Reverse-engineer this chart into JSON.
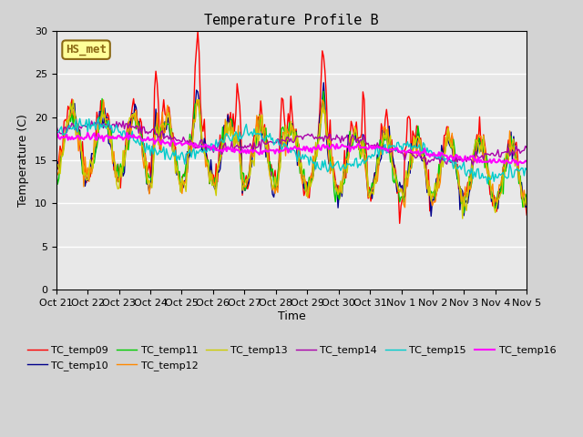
{
  "title": "Temperature Profile B",
  "xlabel": "Time",
  "ylabel": "Temperature (C)",
  "ylim": [
    0,
    30
  ],
  "background_color": "#d3d3d3",
  "plot_bg_color": "#e8e8e8",
  "annotation_text": "HS_met",
  "annotation_bg": "#ffff99",
  "annotation_border": "#8b6914",
  "series_colors": {
    "TC_temp09": "#ff0000",
    "TC_temp10": "#00008b",
    "TC_temp11": "#00cc00",
    "TC_temp12": "#ff8800",
    "TC_temp13": "#cccc00",
    "TC_temp14": "#aa00aa",
    "TC_temp15": "#00cccc",
    "TC_temp16": "#ff00ff"
  },
  "x_tick_labels": [
    "Oct 21",
    "Oct 22",
    "Oct 23",
    "Oct 24",
    "Oct 25",
    "Oct 26",
    "Oct 27",
    "Oct 28",
    "Oct 29",
    "Oct 30",
    "Oct 31",
    "Nov 1",
    "Nov 2",
    "Nov 3",
    "Nov 4",
    "Nov 5"
  ],
  "n_points": 360
}
